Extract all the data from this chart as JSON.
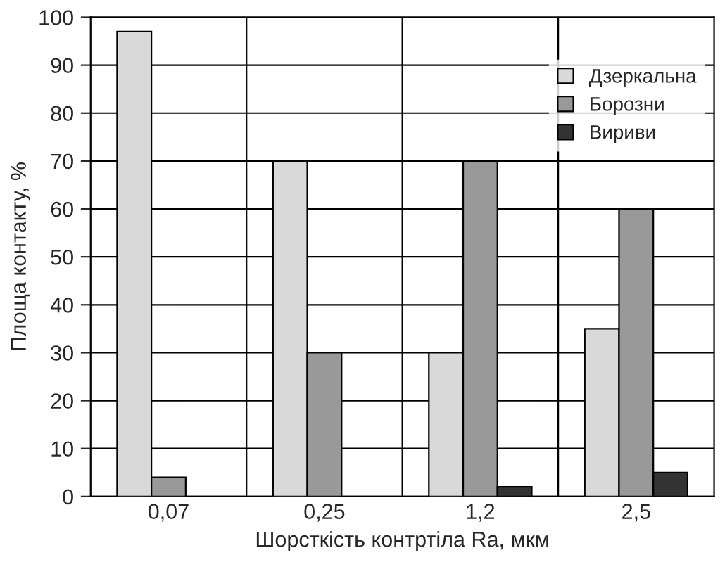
{
  "chart_data": {
    "type": "bar",
    "xlabel": "Шорсткість контртіла Ra, мкм",
    "ylabel": "Площа контакту, %",
    "categories": [
      "0,07",
      "0,25",
      "1,2",
      "2,5"
    ],
    "series": [
      {
        "name": "Дзеркальна",
        "color": "#d9d9d9",
        "values": [
          97,
          70,
          30,
          35
        ]
      },
      {
        "name": "Борозни",
        "color": "#999999",
        "values": [
          4,
          30,
          70,
          60
        ]
      },
      {
        "name": "Вириви",
        "color": "#333333",
        "values": [
          null,
          null,
          2,
          5
        ]
      }
    ],
    "ylim": [
      0,
      100
    ],
    "yticks": [
      0,
      10,
      20,
      30,
      40,
      50,
      60,
      70,
      80,
      90,
      100
    ],
    "grid": true,
    "legend": "top right"
  }
}
